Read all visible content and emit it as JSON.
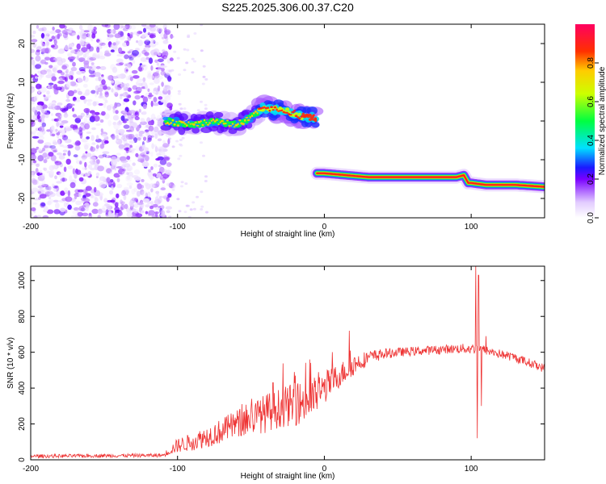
{
  "figure_title": "S225.2025.306.00.37.C20",
  "chart_data": [
    {
      "type": "heatmap",
      "xlabel": "Height of straight line (km)",
      "ylabel": "Frequency (Hz)",
      "xlim": [
        -200,
        150
      ],
      "ylim": [
        -25,
        25
      ],
      "xticks": [
        -200,
        -100,
        0,
        100
      ],
      "yticks": [
        -20,
        -10,
        0,
        10,
        20
      ],
      "colorbar": {
        "label": "Normalized spectral amplitude",
        "range": [
          0.0,
          1.0
        ],
        "ticks": [
          "0.0",
          "0.2",
          "0.4",
          "0.6",
          "0.8"
        ]
      },
      "components": [
        {
          "name": "noise-region",
          "x_range": [
            -200,
            -108
          ],
          "y_range": [
            -25,
            25
          ],
          "amplitude_range": [
            0.0,
            0.2
          ]
        },
        {
          "name": "upper-track",
          "points": [
            [
              -108,
              0
            ],
            [
              -90,
              -1
            ],
            [
              -75,
              0
            ],
            [
              -60,
              -1
            ],
            [
              -50,
              1
            ],
            [
              -42,
              3.5
            ],
            [
              -35,
              3
            ],
            [
              -28,
              2.5
            ],
            [
              -20,
              2
            ],
            [
              -15,
              1
            ],
            [
              -5,
              0.8
            ]
          ],
          "amplitude_range": [
            0.15,
            0.9
          ]
        },
        {
          "name": "lower-track",
          "points": [
            [
              -5,
              -13.5
            ],
            [
              0,
              -13.5
            ],
            [
              15,
              -14
            ],
            [
              30,
              -14.5
            ],
            [
              60,
              -14.5
            ],
            [
              90,
              -14.5
            ],
            [
              95,
              -14
            ],
            [
              98,
              -16
            ],
            [
              100,
              -16
            ],
            [
              110,
              -16.5
            ],
            [
              130,
              -16.5
            ],
            [
              150,
              -17
            ]
          ],
          "amplitude_range": [
            0.6,
            1.0
          ]
        }
      ]
    },
    {
      "type": "line",
      "xlabel": "Height of straight line (km)",
      "ylabel": "SNR (10 * v/v)",
      "xlim": [
        -200,
        150
      ],
      "ylim": [
        0,
        1080
      ],
      "xticks": [
        -200,
        -100,
        0,
        100
      ],
      "yticks": [
        0,
        200,
        400,
        600,
        800,
        1000
      ],
      "series": [
        {
          "name": "SNR",
          "color": "#ee3333",
          "envelope_x": [
            -200,
            -110,
            -100,
            -90,
            -80,
            -70,
            -60,
            -50,
            -40,
            -30,
            -20,
            -10,
            0,
            10,
            20,
            30,
            40,
            50,
            60,
            70,
            80,
            90,
            100,
            105,
            110,
            120,
            130,
            140,
            150
          ],
          "envelope_mean": [
            20,
            25,
            80,
            100,
            130,
            160,
            200,
            230,
            260,
            290,
            310,
            330,
            400,
            470,
            530,
            570,
            590,
            600,
            605,
            610,
            615,
            620,
            620,
            620,
            610,
            590,
            570,
            540,
            510
          ],
          "envelope_spread": [
            10,
            10,
            40,
            50,
            60,
            70,
            80,
            90,
            110,
            110,
            120,
            120,
            90,
            70,
            60,
            40,
            30,
            25,
            25,
            25,
            25,
            25,
            30,
            30,
            25,
            25,
            25,
            25,
            25
          ],
          "spikes": [
            [
              -35,
              430
            ],
            [
              -25,
              400
            ],
            [
              -10,
              560
            ],
            [
              2,
              500
            ],
            [
              17,
              720
            ],
            [
              103,
              1080
            ],
            [
              104,
              120
            ],
            [
              105,
              1030
            ],
            [
              107,
              300
            ],
            [
              110,
              690
            ]
          ]
        }
      ]
    }
  ]
}
